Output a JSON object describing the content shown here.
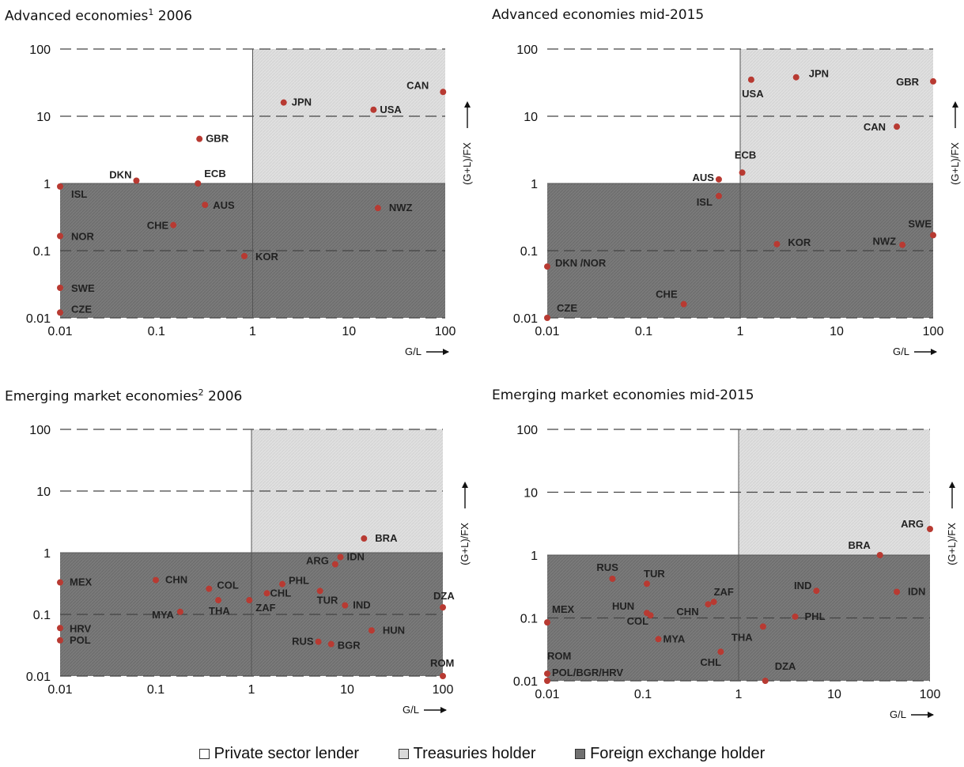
{
  "chart_data": [
    {
      "type": "scatter",
      "title": "Advanced economies",
      "title_sup": "1",
      "title_suffix": " 2006",
      "xlabel": "G/L",
      "ylabel": "(G+L)/FX",
      "xscale": "log",
      "yscale": "log",
      "xlim": [
        0.01,
        100
      ],
      "ylim": [
        0.01,
        100
      ],
      "x_ticks": [
        "0.01",
        "0.1",
        "1",
        "10",
        "100"
      ],
      "y_ticks": [
        "0.01",
        "0.1",
        "1",
        "10",
        "100"
      ],
      "points": [
        {
          "label": "JPN",
          "x": 2.1,
          "y": 16
        },
        {
          "label": "CAN",
          "x": 95,
          "y": 23
        },
        {
          "label": "USA",
          "x": 18,
          "y": 12.5
        },
        {
          "label": "GBR",
          "x": 0.28,
          "y": 4.6
        },
        {
          "label": "DKN",
          "x": 0.062,
          "y": 1.1
        },
        {
          "label": "ECB",
          "x": 0.27,
          "y": 1.0
        },
        {
          "label": "ISL",
          "x": 0.01,
          "y": 0.9
        },
        {
          "label": "AUS",
          "x": 0.32,
          "y": 0.48
        },
        {
          "label": "NWZ",
          "x": 20,
          "y": 0.43
        },
        {
          "label": "CHE",
          "x": 0.15,
          "y": 0.24
        },
        {
          "label": "NOR",
          "x": 0.01,
          "y": 0.165
        },
        {
          "label": "KOR",
          "x": 0.82,
          "y": 0.083
        },
        {
          "label": "SWE",
          "x": 0.01,
          "y": 0.028
        },
        {
          "label": "CZE",
          "x": 0.01,
          "y": 0.012
        }
      ]
    },
    {
      "type": "scatter",
      "title": "Advanced economies mid-2015",
      "xlabel": "G/L",
      "ylabel": "(G+L)/FX",
      "xscale": "log",
      "yscale": "log",
      "xlim": [
        0.01,
        100
      ],
      "ylim": [
        0.01,
        100
      ],
      "x_ticks": [
        "0.01",
        "0.1",
        "1",
        "10",
        "100"
      ],
      "y_ticks": [
        "0.01",
        "0.1",
        "1",
        "10",
        "100"
      ],
      "points": [
        {
          "label": "USA",
          "x": 1.3,
          "y": 35
        },
        {
          "label": "JPN",
          "x": 3.8,
          "y": 38
        },
        {
          "label": "GBR",
          "x": 100,
          "y": 33
        },
        {
          "label": "CAN",
          "x": 42,
          "y": 7
        },
        {
          "label": "ECB",
          "x": 1.05,
          "y": 1.45
        },
        {
          "label": "AUS",
          "x": 0.6,
          "y": 1.15
        },
        {
          "label": "ISL",
          "x": 0.6,
          "y": 0.65
        },
        {
          "label": "KOR",
          "x": 2.4,
          "y": 0.125
        },
        {
          "label": "NWZ",
          "x": 48,
          "y": 0.122
        },
        {
          "label": "SWE",
          "x": 100,
          "y": 0.17
        },
        {
          "label": "DKN /NOR",
          "x": 0.01,
          "y": 0.058
        },
        {
          "label": "CHE",
          "x": 0.26,
          "y": 0.016
        },
        {
          "label": "CZE",
          "x": 0.01,
          "y": 0.01
        }
      ]
    },
    {
      "type": "scatter",
      "title": "Emerging market economies",
      "title_sup": "2",
      "title_suffix": " 2006",
      "xlabel": "G/L",
      "ylabel": "(G+L)/FX",
      "xscale": "log",
      "yscale": "log",
      "xlim": [
        0.01,
        100
      ],
      "ylim": [
        0.01,
        100
      ],
      "x_ticks": [
        "0.01",
        "0.1",
        "1",
        "10",
        "100"
      ],
      "y_ticks": [
        "0.01",
        "0.1",
        "1",
        "10",
        "100"
      ],
      "points": [
        {
          "label": "BRA",
          "x": 15,
          "y": 1.7
        },
        {
          "label": "IDN",
          "x": 8.5,
          "y": 0.85
        },
        {
          "label": "ARG",
          "x": 7.5,
          "y": 0.65
        },
        {
          "label": "MEX",
          "x": 0.01,
          "y": 0.33
        },
        {
          "label": "CHN",
          "x": 0.1,
          "y": 0.36
        },
        {
          "label": "COL",
          "x": 0.36,
          "y": 0.26
        },
        {
          "label": "PHL",
          "x": 2.1,
          "y": 0.31
        },
        {
          "label": "CHL",
          "x": 1.45,
          "y": 0.22
        },
        {
          "label": "TUR",
          "x": 5.2,
          "y": 0.24
        },
        {
          "label": "ZAF",
          "x": 0.95,
          "y": 0.17
        },
        {
          "label": "THA",
          "x": 0.45,
          "y": 0.17
        },
        {
          "label": "MYA",
          "x": 0.18,
          "y": 0.11
        },
        {
          "label": "IND",
          "x": 9.5,
          "y": 0.14
        },
        {
          "label": "DZA",
          "x": 100,
          "y": 0.13
        },
        {
          "label": "HRV",
          "x": 0.01,
          "y": 0.06
        },
        {
          "label": "POL",
          "x": 0.01,
          "y": 0.038
        },
        {
          "label": "HUN",
          "x": 18,
          "y": 0.055
        },
        {
          "label": "RUS",
          "x": 5,
          "y": 0.036
        },
        {
          "label": "BGR",
          "x": 6.8,
          "y": 0.033
        },
        {
          "label": "ROM",
          "x": 100,
          "y": 0.01
        }
      ]
    },
    {
      "type": "scatter",
      "title": "Emerging market economies mid-2015",
      "xlabel": "G/L",
      "ylabel": "(G+L)/FX",
      "xscale": "log",
      "yscale": "log",
      "xlim": [
        0.01,
        100
      ],
      "ylim": [
        0.01,
        100
      ],
      "x_ticks": [
        "0.01",
        "0.1",
        "1",
        "10",
        "100"
      ],
      "y_ticks": [
        "0.01",
        "0.1",
        "1",
        "10",
        "100"
      ],
      "points": [
        {
          "label": "ARG",
          "x": 100,
          "y": 2.6
        },
        {
          "label": "BRA",
          "x": 30,
          "y": 1.0
        },
        {
          "label": "RUS",
          "x": 0.048,
          "y": 0.42
        },
        {
          "label": "TUR",
          "x": 0.11,
          "y": 0.35
        },
        {
          "label": "IND",
          "x": 6.5,
          "y": 0.27
        },
        {
          "label": "IDN",
          "x": 45,
          "y": 0.26
        },
        {
          "label": "ZAF",
          "x": 0.55,
          "y": 0.18
        },
        {
          "label": "CHN",
          "x": 0.48,
          "y": 0.165
        },
        {
          "label": "HUN",
          "x": 0.11,
          "y": 0.12
        },
        {
          "label": "COL",
          "x": 0.12,
          "y": 0.11
        },
        {
          "label": "PHL",
          "x": 3.9,
          "y": 0.105
        },
        {
          "label": "MEX",
          "x": 0.01,
          "y": 0.085
        },
        {
          "label": "THA",
          "x": 1.8,
          "y": 0.073
        },
        {
          "label": "MYA",
          "x": 0.145,
          "y": 0.046
        },
        {
          "label": "CHL",
          "x": 0.65,
          "y": 0.029
        },
        {
          "label": "ROM",
          "x": 0.01,
          "y": 0.013
        },
        {
          "label": "POL/BGR/HRV",
          "x": 0.01,
          "y": 0.01
        },
        {
          "label": "DZA",
          "x": 1.9,
          "y": 0.01
        }
      ]
    }
  ],
  "legend": [
    {
      "label": "Private sector lender",
      "color": "#ffffff"
    },
    {
      "label": "Treasuries holder",
      "color": "#d9d9d9"
    },
    {
      "label": "Foreign exchange holder",
      "color": "#707070"
    }
  ],
  "colors": {
    "point": "#b83a32",
    "light_region": "#dedede",
    "dark_region": "#7a7a7a"
  }
}
